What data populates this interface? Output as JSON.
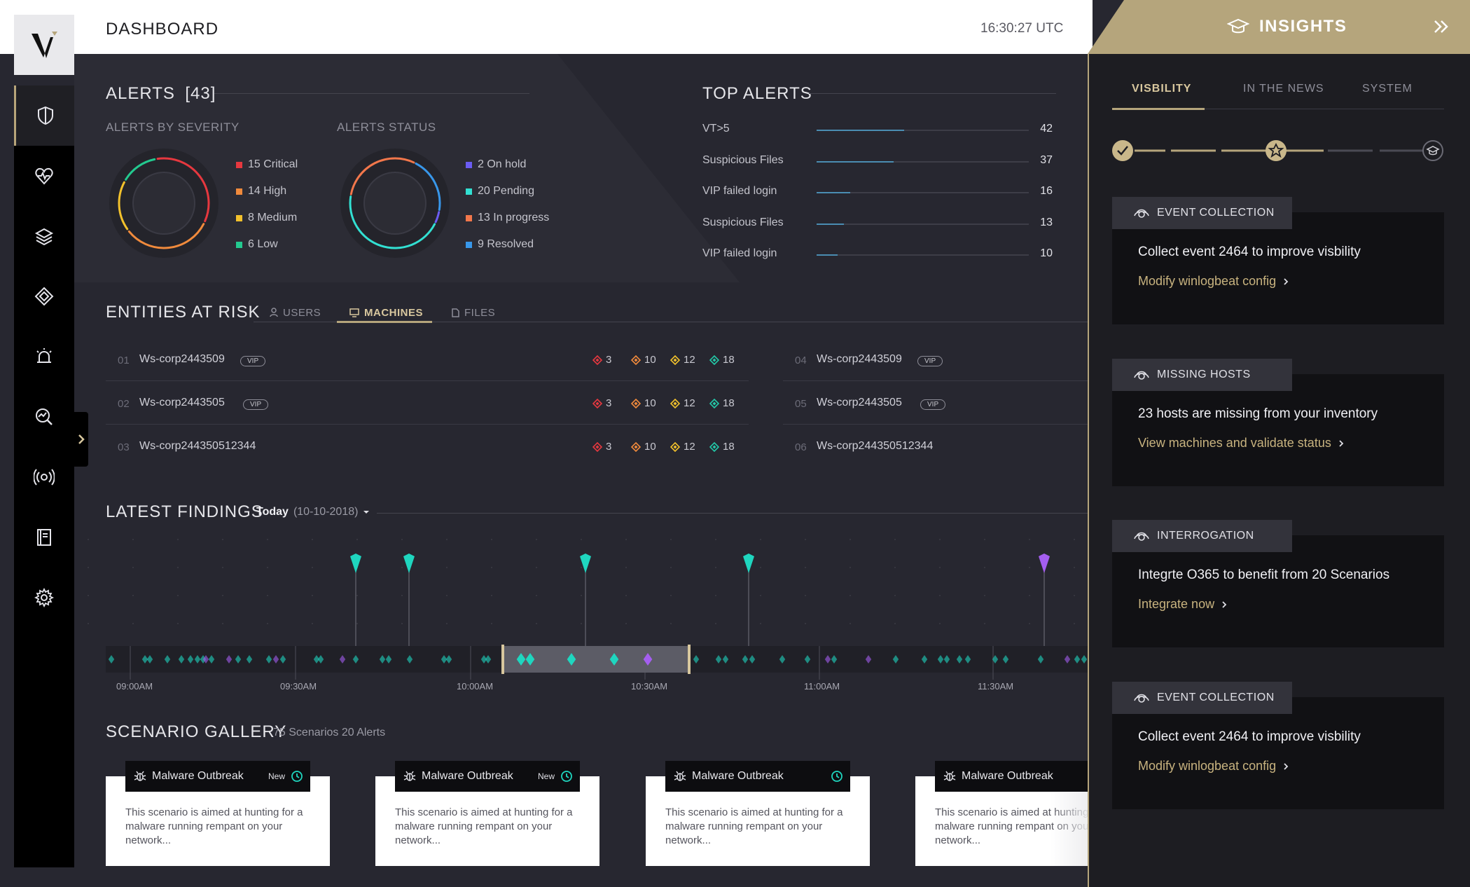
{
  "header": {
    "title": "DASHBOARD",
    "clock": "16:30:27 UTC"
  },
  "sidebar": {
    "items": [
      {
        "icon": "shield-icon",
        "active": true
      },
      {
        "icon": "heart-pulse-icon"
      },
      {
        "icon": "layers-icon"
      },
      {
        "icon": "diamond-icon"
      },
      {
        "icon": "alarm-icon"
      },
      {
        "icon": "chart-search-icon"
      },
      {
        "icon": "radar-icon"
      },
      {
        "icon": "notebook-icon"
      },
      {
        "icon": "gear-icon"
      }
    ]
  },
  "alerts": {
    "title": "ALERTS",
    "count": "[43]",
    "by_severity": {
      "label": "ALERTS BY SEVERITY",
      "items": [
        {
          "label": "15 Critical",
          "value": 15,
          "color": "#e6383f"
        },
        {
          "label": "14 High",
          "value": 14,
          "color": "#f08a3c"
        },
        {
          "label": "8 Medium",
          "value": 8,
          "color": "#f2c12c"
        },
        {
          "label": "6 Low",
          "value": 6,
          "color": "#23c98f"
        }
      ]
    },
    "status": {
      "label": "ALERTS STATUS",
      "items": [
        {
          "label": "2 On hold",
          "value": 2,
          "color": "#6b5cf2"
        },
        {
          "label": "20 Pending",
          "value": 20,
          "color": "#32e0d2"
        },
        {
          "label": "13 In progress",
          "value": 13,
          "color": "#f2774b"
        },
        {
          "label": "9 Resolved",
          "value": 9,
          "color": "#3897ea"
        }
      ]
    }
  },
  "top_alerts": {
    "title": "TOP ALERTS",
    "items": [
      {
        "label": "VT>5",
        "value": 42
      },
      {
        "label": "Suspicious Files",
        "value": 37
      },
      {
        "label": "VIP failed login",
        "value": 16
      },
      {
        "label": "Suspicious Files",
        "value": 13
      },
      {
        "label": "VIP failed login",
        "value": 10
      }
    ]
  },
  "entities": {
    "title": "ENTITIES AT RISK",
    "tabs": [
      {
        "label": "USERS",
        "icon": "user-icon"
      },
      {
        "label": "MACHINES",
        "icon": "monitor-icon",
        "active": true
      },
      {
        "label": "FILES",
        "icon": "file-icon"
      }
    ],
    "vip_label": "VIP",
    "rows": [
      {
        "num": "01",
        "name": "Ws-corp2443509",
        "vip": true,
        "risks": [
          "3",
          "10",
          "12",
          "18"
        ]
      },
      {
        "num": "02",
        "name": "Ws-corp2443505",
        "vip": true,
        "risks": [
          "3",
          "10",
          "12",
          "18"
        ]
      },
      {
        "num": "03",
        "name": "Ws-corp244350512344",
        "vip": false,
        "risks": [
          "3",
          "10",
          "12",
          "18"
        ]
      },
      {
        "num": "04",
        "name": "Ws-corp2443509",
        "vip": true,
        "risks": []
      },
      {
        "num": "05",
        "name": "Ws-corp2443505",
        "vip": true,
        "risks": []
      },
      {
        "num": "06",
        "name": "Ws-corp244350512344",
        "vip": false,
        "risks": []
      }
    ],
    "risk_colors": [
      "#e6383f",
      "#f08a3c",
      "#f2c12c",
      "#23c9a8"
    ]
  },
  "findings": {
    "title": "LATEST FINDINGS",
    "period": "Today",
    "date": "(10-10-2018)",
    "time_labels": [
      "09:00AM",
      "09:30AM",
      "10:00AM",
      "10:30AM",
      "11:00AM",
      "11:30AM"
    ],
    "colors": {
      "teal": "#1fd6bf",
      "purple": "#a45ef0"
    }
  },
  "scenarios": {
    "title": "SCENARIO GALLERY",
    "summary": "75 Scenarios 20 Alerts",
    "cards": [
      {
        "title": "Malware Outbreak",
        "badge": "New",
        "text": "This scenario is aimed at hunting for a  malware running rempant on your network..."
      },
      {
        "title": "Malware Outbreak",
        "badge": "New",
        "text": "This scenario is aimed at hunting for a  malware running rempant on your network..."
      },
      {
        "title": "Malware Outbreak",
        "badge": "",
        "text": "This scenario is aimed at hunting for a  malware running rempant on your network..."
      },
      {
        "title": "Malware Outbreak",
        "badge": "",
        "text": "This scenario is aimed at hunting for a  malware running rempant on your network..."
      }
    ]
  },
  "insights": {
    "title": "INSIGHTS",
    "tabs": [
      {
        "label": "VISBILITY",
        "active": true
      },
      {
        "label": "IN THE NEWS"
      },
      {
        "label": "SYSTEM"
      }
    ],
    "cards": [
      {
        "head": "EVENT COLLECTION",
        "text": "Collect event 2464 to improve visbility",
        "link": "Modify winlogbeat config"
      },
      {
        "head": "MISSING HOSTS",
        "text": "23 hosts are missing from your inventory",
        "link": "View machines and validate status"
      },
      {
        "head": "INTERROGATION",
        "text": "Integrte O365 to benefit from 20 Scenarios",
        "link": "Integrate now"
      },
      {
        "head": "EVENT COLLECTION",
        "text": "Collect event 2464 to improve visbility",
        "link": "Modify winlogbeat config"
      }
    ]
  }
}
